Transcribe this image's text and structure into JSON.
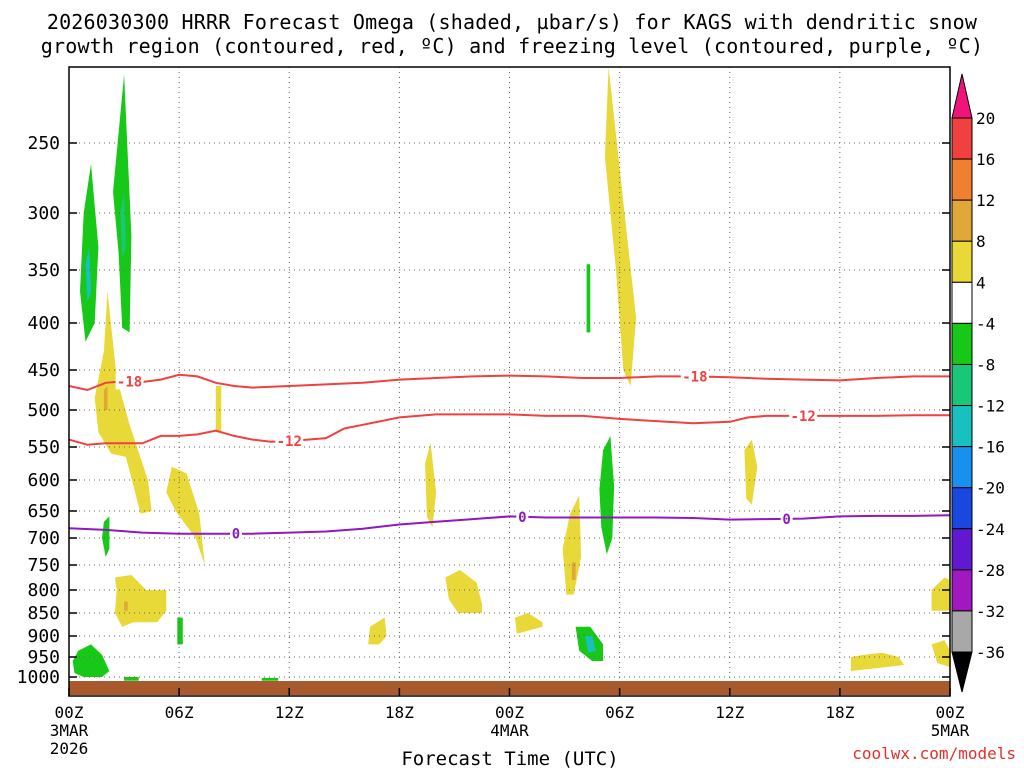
{
  "title": {
    "line1": "2026030300 HRRR Forecast Omega (shaded, µbar/s) for KAGS with dendritic snow",
    "line2": "growth region (contoured, red, ºC) and freezing level (contoured, purple, ºC)"
  },
  "credit": "coolwx.com/models",
  "chart_data": {
    "type": "heatmap",
    "xlabel": "Forecast Time (UTC)",
    "ylabel": "",
    "xlim": [
      0,
      48
    ],
    "x_ticks": [
      {
        "hour": 0,
        "label": "00Z",
        "sub1": "3MAR",
        "sub2": "2026"
      },
      {
        "hour": 6,
        "label": "06Z"
      },
      {
        "hour": 12,
        "label": "12Z"
      },
      {
        "hour": 18,
        "label": "18Z"
      },
      {
        "hour": 24,
        "label": "00Z",
        "sub1": "4MAR"
      },
      {
        "hour": 30,
        "label": "06Z"
      },
      {
        "hour": 36,
        "label": "12Z"
      },
      {
        "hour": 42,
        "label": "18Z"
      },
      {
        "hour": 48,
        "label": "00Z",
        "sub1": "5MAR"
      }
    ],
    "y_ticks": [
      250,
      300,
      350,
      400,
      450,
      500,
      550,
      600,
      650,
      700,
      750,
      800,
      850,
      900,
      950,
      1000
    ],
    "grid": true,
    "colorbar": {
      "levels": [
        20,
        16,
        12,
        8,
        4,
        -4,
        -8,
        -12,
        -16,
        -20,
        -24,
        -28,
        -32,
        -36
      ],
      "colors": [
        "#f0147a",
        "#f04040",
        "#f08030",
        "#e0a838",
        "#e8d838",
        "#ffffff",
        "#18c818",
        "#18c878",
        "#18c0c0",
        "#1890f0",
        "#1848e0",
        "#6018d0",
        "#a018c0",
        "#a8a8a8",
        "#000000"
      ]
    },
    "omega_areas": [
      {
        "value": -8,
        "points": [
          [
            0.8,
            300
          ],
          [
            1.2,
            265
          ],
          [
            1.6,
            330
          ],
          [
            1.4,
            400
          ],
          [
            0.9,
            420
          ],
          [
            0.6,
            370
          ]
        ]
      },
      {
        "value": -14,
        "points": [
          [
            0.9,
            345
          ],
          [
            1.1,
            330
          ],
          [
            1.2,
            370
          ],
          [
            1.0,
            380
          ]
        ]
      },
      {
        "value": -8,
        "points": [
          [
            2.4,
            285
          ],
          [
            3.0,
            205
          ],
          [
            3.4,
            320
          ],
          [
            3.3,
            410
          ],
          [
            2.9,
            405
          ],
          [
            2.7,
            335
          ]
        ]
      },
      {
        "value": -10,
        "points": [
          [
            2.8,
            300
          ],
          [
            3.0,
            285
          ],
          [
            3.1,
            330
          ],
          [
            2.9,
            340
          ]
        ]
      },
      {
        "value": -6,
        "points": [
          [
            1.9,
            670
          ],
          [
            2.2,
            660
          ],
          [
            2.2,
            720
          ],
          [
            2.0,
            735
          ],
          [
            1.8,
            700
          ]
        ]
      },
      {
        "value": -8,
        "points": [
          [
            0.5,
            935
          ],
          [
            1.2,
            920
          ],
          [
            1.8,
            945
          ],
          [
            2.2,
            985
          ],
          [
            1.8,
            1000
          ],
          [
            0.8,
            1000
          ],
          [
            0.3,
            990
          ],
          [
            0.2,
            960
          ]
        ]
      },
      {
        "value": -6,
        "points": [
          [
            3.0,
            1000
          ],
          [
            3.8,
            1000
          ],
          [
            3.8,
            1008
          ],
          [
            3.0,
            1008
          ]
        ]
      },
      {
        "value": -6,
        "points": [
          [
            10.5,
            1002
          ],
          [
            11.4,
            1002
          ],
          [
            11.4,
            1008
          ],
          [
            10.5,
            1008
          ]
        ]
      },
      {
        "value": -6,
        "points": [
          [
            5.9,
            860
          ],
          [
            6.2,
            860
          ],
          [
            6.2,
            920
          ],
          [
            5.9,
            920
          ]
        ]
      },
      {
        "value": -8,
        "points": [
          [
            28.2,
            345
          ],
          [
            28.4,
            345
          ],
          [
            28.4,
            410
          ],
          [
            28.2,
            410
          ]
        ]
      },
      {
        "value": -8,
        "points": [
          [
            29.1,
            555
          ],
          [
            29.5,
            535
          ],
          [
            29.7,
            610
          ],
          [
            29.6,
            700
          ],
          [
            29.3,
            730
          ],
          [
            29.0,
            680
          ],
          [
            28.9,
            615
          ]
        ]
      },
      {
        "value": -8,
        "points": [
          [
            27.6,
            880
          ],
          [
            28.4,
            880
          ],
          [
            29.1,
            920
          ],
          [
            29.1,
            960
          ],
          [
            28.5,
            960
          ],
          [
            27.8,
            935
          ]
        ]
      },
      {
        "value": -14,
        "points": [
          [
            28.1,
            900
          ],
          [
            28.5,
            900
          ],
          [
            28.7,
            935
          ],
          [
            28.3,
            940
          ]
        ]
      },
      {
        "value": 6,
        "points": [
          [
            29.4,
            200
          ],
          [
            30.4,
            320
          ],
          [
            30.9,
            395
          ],
          [
            30.6,
            470
          ],
          [
            30.2,
            450
          ],
          [
            29.8,
            350
          ],
          [
            29.2,
            260
          ]
        ]
      },
      {
        "value": 6,
        "points": [
          [
            1.4,
            485
          ],
          [
            1.9,
            430
          ],
          [
            2.1,
            370
          ],
          [
            2.6,
            460
          ],
          [
            3.3,
            520
          ],
          [
            4.3,
            600
          ],
          [
            4.5,
            650
          ],
          [
            3.9,
            655
          ],
          [
            3.1,
            565
          ],
          [
            2.3,
            560
          ],
          [
            1.6,
            530
          ]
        ]
      },
      {
        "value": 6,
        "points": [
          [
            5.6,
            580
          ],
          [
            6.4,
            590
          ],
          [
            7.1,
            655
          ],
          [
            7.4,
            750
          ],
          [
            6.9,
            700
          ],
          [
            5.8,
            650
          ],
          [
            5.3,
            620
          ]
        ]
      },
      {
        "value": 10,
        "points": [
          [
            1.9,
            475
          ],
          [
            2.1,
            470
          ],
          [
            2.1,
            500
          ],
          [
            1.9,
            500
          ]
        ]
      },
      {
        "value": 6,
        "points": [
          [
            8.0,
            470
          ],
          [
            8.3,
            470
          ],
          [
            8.3,
            530
          ],
          [
            8.0,
            530
          ]
        ]
      },
      {
        "value": 6,
        "points": [
          [
            2.5,
            775
          ],
          [
            3.4,
            770
          ],
          [
            4.2,
            800
          ],
          [
            5.3,
            800
          ],
          [
            5.3,
            845
          ],
          [
            4.8,
            870
          ],
          [
            3.5,
            870
          ],
          [
            2.9,
            880
          ],
          [
            2.5,
            850
          ],
          [
            2.6,
            800
          ]
        ]
      },
      {
        "value": 10,
        "points": [
          [
            3.0,
            825
          ],
          [
            3.2,
            825
          ],
          [
            3.2,
            845
          ],
          [
            3.0,
            845
          ]
        ]
      },
      {
        "value": 6,
        "points": [
          [
            16.4,
            880
          ],
          [
            17.2,
            860
          ],
          [
            17.3,
            900
          ],
          [
            16.9,
            920
          ],
          [
            16.3,
            920
          ]
        ]
      },
      {
        "value": 6,
        "points": [
          [
            19.4,
            575
          ],
          [
            19.7,
            545
          ],
          [
            20.0,
            620
          ],
          [
            19.8,
            680
          ],
          [
            19.5,
            660
          ]
        ]
      },
      {
        "value": 6,
        "points": [
          [
            20.5,
            775
          ],
          [
            21.3,
            760
          ],
          [
            22.2,
            785
          ],
          [
            22.5,
            830
          ],
          [
            22.5,
            850
          ],
          [
            21.2,
            850
          ],
          [
            20.7,
            820
          ]
        ]
      },
      {
        "value": 6,
        "points": [
          [
            24.3,
            860
          ],
          [
            25.0,
            850
          ],
          [
            25.8,
            870
          ],
          [
            25.8,
            880
          ],
          [
            24.4,
            895
          ]
        ]
      },
      {
        "value": 6,
        "points": [
          [
            26.9,
            720
          ],
          [
            27.3,
            655
          ],
          [
            27.8,
            625
          ],
          [
            27.9,
            735
          ],
          [
            27.5,
            810
          ],
          [
            27.1,
            810
          ]
        ]
      },
      {
        "value": 10,
        "points": [
          [
            27.4,
            745
          ],
          [
            27.6,
            745
          ],
          [
            27.6,
            780
          ],
          [
            27.4,
            780
          ]
        ]
      },
      {
        "value": 6,
        "points": [
          [
            36.8,
            555
          ],
          [
            37.2,
            540
          ],
          [
            37.5,
            580
          ],
          [
            37.2,
            640
          ],
          [
            36.9,
            630
          ]
        ]
      },
      {
        "value": 6,
        "points": [
          [
            42.6,
            950
          ],
          [
            43.3,
            945
          ],
          [
            44.3,
            940
          ],
          [
            45.2,
            950
          ],
          [
            45.5,
            970
          ],
          [
            43.6,
            980
          ],
          [
            42.6,
            985
          ]
        ]
      },
      {
        "value": 6,
        "points": [
          [
            47.0,
            800
          ],
          [
            47.7,
            775
          ],
          [
            48.0,
            780
          ],
          [
            48.0,
            845
          ],
          [
            47.0,
            845
          ]
        ]
      },
      {
        "value": 6,
        "points": [
          [
            47.0,
            920
          ],
          [
            47.7,
            910
          ],
          [
            48.0,
            935
          ],
          [
            48.0,
            975
          ],
          [
            47.3,
            965
          ]
        ]
      }
    ],
    "contours": [
      {
        "label": "-18",
        "color": "#f04040",
        "points": [
          [
            0,
            470
          ],
          [
            1,
            475
          ],
          [
            2,
            466
          ],
          [
            3,
            464
          ],
          [
            4,
            465
          ],
          [
            5,
            462
          ],
          [
            6,
            456
          ],
          [
            7,
            458
          ],
          [
            8,
            466
          ],
          [
            9,
            470
          ],
          [
            10,
            472
          ],
          [
            12,
            470
          ],
          [
            14,
            468
          ],
          [
            16,
            466
          ],
          [
            18,
            462
          ],
          [
            20,
            460
          ],
          [
            22,
            458
          ],
          [
            24,
            457
          ],
          [
            26,
            458
          ],
          [
            28,
            460
          ],
          [
            30,
            460
          ],
          [
            32,
            458
          ],
          [
            34,
            458
          ],
          [
            36,
            459
          ],
          [
            38,
            461
          ],
          [
            40,
            462
          ],
          [
            42,
            463
          ],
          [
            44,
            460
          ],
          [
            46,
            458
          ],
          [
            48,
            458
          ]
        ],
        "labels_at": [
          3.3,
          34.1
        ]
      },
      {
        "label": "-12",
        "color": "#f04040",
        "points": [
          [
            0,
            540
          ],
          [
            1,
            547
          ],
          [
            2,
            545
          ],
          [
            3,
            545
          ],
          [
            4,
            545
          ],
          [
            5,
            535
          ],
          [
            6,
            535
          ],
          [
            7,
            533
          ],
          [
            8,
            528
          ],
          [
            9,
            535
          ],
          [
            10,
            540
          ],
          [
            11,
            543
          ],
          [
            12,
            542
          ],
          [
            14,
            538
          ],
          [
            15,
            525
          ],
          [
            16,
            520
          ],
          [
            17,
            515
          ],
          [
            18,
            510
          ],
          [
            19,
            508
          ],
          [
            20,
            506
          ],
          [
            22,
            506
          ],
          [
            24,
            506
          ],
          [
            26,
            508
          ],
          [
            28,
            508
          ],
          [
            30,
            512
          ],
          [
            32,
            515
          ],
          [
            34,
            518
          ],
          [
            36,
            516
          ],
          [
            37,
            510
          ],
          [
            38,
            508
          ],
          [
            40,
            508
          ],
          [
            42,
            508
          ],
          [
            44,
            508
          ],
          [
            46,
            507
          ],
          [
            48,
            507
          ]
        ],
        "labels_at": [
          12.0,
          40.0
        ]
      },
      {
        "label": "0",
        "color": "#9018c0",
        "points": [
          [
            0,
            682
          ],
          [
            2,
            685
          ],
          [
            4,
            690
          ],
          [
            6,
            692
          ],
          [
            8,
            692
          ],
          [
            10,
            692
          ],
          [
            12,
            690
          ],
          [
            14,
            688
          ],
          [
            16,
            683
          ],
          [
            18,
            675
          ],
          [
            20,
            670
          ],
          [
            22,
            665
          ],
          [
            24,
            660
          ],
          [
            26,
            662
          ],
          [
            28,
            662
          ],
          [
            30,
            662
          ],
          [
            32,
            662
          ],
          [
            34,
            663
          ],
          [
            36,
            666
          ],
          [
            38,
            665
          ],
          [
            40,
            664
          ],
          [
            42,
            660
          ],
          [
            44,
            659
          ],
          [
            46,
            659
          ],
          [
            48,
            658
          ]
        ],
        "labels_at": [
          9.1,
          24.7,
          39.1
        ]
      }
    ]
  }
}
